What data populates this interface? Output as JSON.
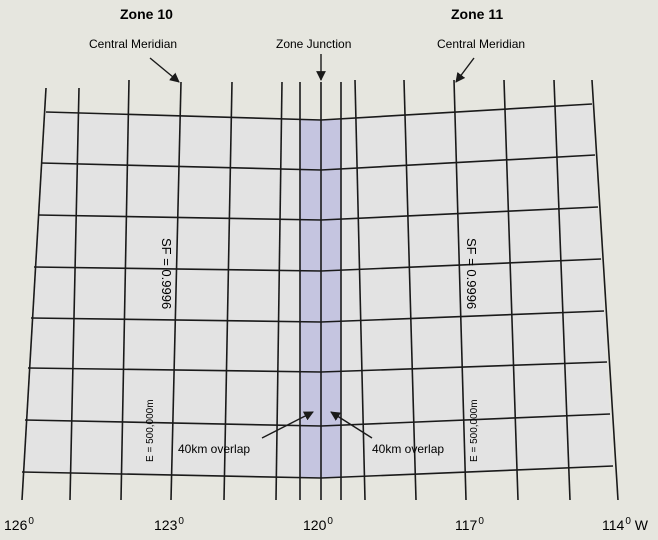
{
  "zones": {
    "left_label": "Zone 10",
    "right_label": "Zone 11"
  },
  "annotations": {
    "central_meridian_left": "Central Meridian",
    "zone_junction": "Zone Junction",
    "central_meridian_right": "Central Meridian",
    "overlap_left": "40km overlap",
    "overlap_right": "40km overlap",
    "scale_factor_left": "SF = 0.9996",
    "scale_factor_right": "SF = 0.9996",
    "easting_left": "E = 500,000m",
    "easting_right": "E = 500,000m"
  },
  "longitudes": [
    {
      "value": "126",
      "deg": "0",
      "suffix": ""
    },
    {
      "value": "123",
      "deg": "0",
      "suffix": ""
    },
    {
      "value": "120",
      "deg": "0",
      "suffix": ""
    },
    {
      "value": "117",
      "deg": "0",
      "suffix": ""
    },
    {
      "value": "114",
      "deg": "0",
      "suffix": "W"
    }
  ],
  "colors": {
    "background": "#e6e6df",
    "grid_fill": "#e3e3e3",
    "overlap_fill": "#c5c5e0",
    "line": "#1a1a1a"
  }
}
